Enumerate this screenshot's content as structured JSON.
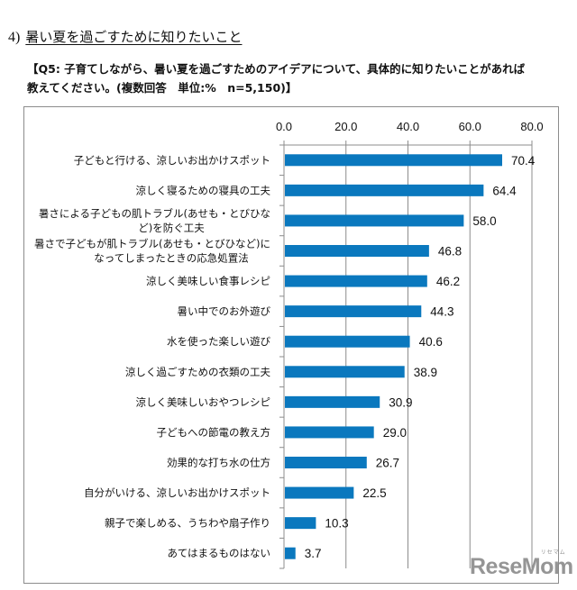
{
  "section": {
    "number": "4)",
    "title": "暑い夏を過ごすために知りたいこと"
  },
  "question": {
    "line1": "【Q5: 子育てしながら、暑い夏を過ごすためのアイデアについて、具体的に知りたいことがあれば",
    "line2": "教えてください。(複数回答　単位:%　n=5,150)】"
  },
  "watermark": {
    "text": "ReseMom",
    "ruby": "リセマム"
  },
  "colors": {
    "bar": "#0a78be",
    "axis": "#8c8c8c",
    "grid": "#8c8c8c"
  },
  "chart_data": {
    "type": "bar",
    "orientation": "horizontal",
    "title": "",
    "xlabel": "",
    "ylabel": "",
    "xlim": [
      0,
      80
    ],
    "xticks": [
      0,
      20,
      40,
      60,
      80
    ],
    "xtick_labels": [
      "0.0",
      "20.0",
      "40.0",
      "60.0",
      "80.0"
    ],
    "axis_position": "top",
    "grid": "vertical",
    "unit": "%",
    "n": 5150,
    "categories": [
      [
        "子どもと行ける、涼しいお出かけスポット"
      ],
      [
        "涼しく寝るための寝具の工夫"
      ],
      [
        "暑さによる子どもの肌トラブル(あせも・とびひな",
        "ど)を防ぐ工夫"
      ],
      [
        "暑さで子どもが肌トラブル(あせも・とびひなど)に",
        "なってしまったときの応急処置法"
      ],
      [
        "涼しく美味しい食事レシピ"
      ],
      [
        "暑い中でのお外遊び"
      ],
      [
        "水を使った楽しい遊び"
      ],
      [
        "涼しく過ごすための衣類の工夫"
      ],
      [
        "涼しく美味しいおやつレシピ"
      ],
      [
        "子どもへの節電の教え方"
      ],
      [
        "効果的な打ち水の仕方"
      ],
      [
        "自分がいける、涼しいお出かけスポット"
      ],
      [
        "親子で楽しめる、うちわや扇子作り"
      ],
      [
        "あてはまるものはない"
      ]
    ],
    "values": [
      70.4,
      64.4,
      58.0,
      46.8,
      46.2,
      44.3,
      40.6,
      38.9,
      30.9,
      29.0,
      26.7,
      22.5,
      10.3,
      3.7
    ],
    "value_labels": [
      "70.4",
      "64.4",
      "58.0",
      "46.8",
      "46.2",
      "44.3",
      "40.6",
      "38.9",
      "30.9",
      "29.0",
      "26.7",
      "22.5",
      "10.3",
      "3.7"
    ]
  }
}
